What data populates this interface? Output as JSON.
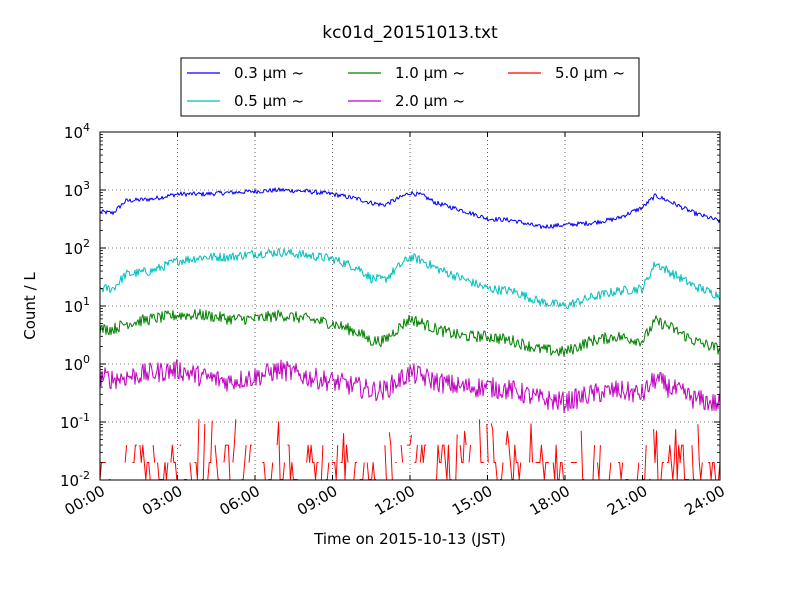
{
  "chart_data": {
    "type": "line",
    "title": "kc01d_20151013.txt",
    "xlabel": "Time on 2015-10-13 (JST)",
    "ylabel": "Count / L",
    "x_ticks": [
      "00:00",
      "03:00",
      "06:00",
      "09:00",
      "12:00",
      "15:00",
      "18:00",
      "21:00",
      "24:00"
    ],
    "xlim": [
      "00:00",
      "24:00"
    ],
    "yscale": "log",
    "ylim": [
      0.01,
      10000
    ],
    "y_ticks": [
      {
        "base": "10",
        "exp": "-2"
      },
      {
        "base": "10",
        "exp": "-1"
      },
      {
        "base": "10",
        "exp": "0"
      },
      {
        "base": "10",
        "exp": "1"
      },
      {
        "base": "10",
        "exp": "2"
      },
      {
        "base": "10",
        "exp": "3"
      },
      {
        "base": "10",
        "exp": "4"
      }
    ],
    "grid": true,
    "legend_position": "top-center",
    "series": [
      {
        "name": "0.3 μm ~",
        "color": "#0000ff",
        "x_hours": [
          0,
          0.5,
          1,
          2,
          3,
          4,
          5,
          6,
          7,
          8,
          9,
          10,
          10.5,
          11,
          11.5,
          12,
          12.5,
          13,
          14,
          15,
          16,
          17,
          18,
          19,
          20,
          21,
          21.5,
          22,
          23,
          24
        ],
        "values": [
          420,
          400,
          650,
          700,
          850,
          850,
          900,
          950,
          1000,
          950,
          850,
          700,
          600,
          550,
          700,
          900,
          800,
          600,
          450,
          320,
          300,
          230,
          250,
          270,
          320,
          500,
          800,
          650,
          400,
          290
        ]
      },
      {
        "name": "0.5 μm ~",
        "color": "#00bfbf",
        "x_hours": [
          0,
          0.5,
          1,
          2,
          3,
          4,
          5,
          6,
          7,
          8,
          9,
          10,
          10.5,
          11,
          11.5,
          12,
          12.5,
          13,
          14,
          15,
          16,
          17,
          18,
          19,
          20,
          21,
          21.5,
          22,
          23,
          24
        ],
        "values": [
          20,
          20,
          35,
          40,
          60,
          70,
          70,
          80,
          85,
          75,
          65,
          45,
          30,
          28,
          45,
          70,
          60,
          45,
          30,
          20,
          18,
          12,
          10,
          14,
          18,
          20,
          55,
          40,
          22,
          15
        ]
      },
      {
        "name": "1.0 μm ~",
        "color": "#008000",
        "x_hours": [
          0,
          0.5,
          1,
          2,
          3,
          4,
          5,
          6,
          7,
          8,
          9,
          10,
          10.5,
          11,
          11.5,
          12,
          12.5,
          13,
          14,
          15,
          16,
          17,
          18,
          19,
          20,
          21,
          21.5,
          22,
          23,
          24
        ],
        "values": [
          4,
          4,
          5,
          6,
          7,
          7,
          6,
          6,
          7,
          6,
          5,
          3.5,
          2.5,
          2.5,
          4,
          6,
          5,
          4,
          3,
          3,
          2.5,
          1.8,
          1.6,
          2.5,
          3,
          2.5,
          5.5,
          4.5,
          2.5,
          1.8
        ]
      },
      {
        "name": "2.0 μm ~",
        "color": "#bf00bf",
        "x_hours": [
          0,
          0.5,
          1,
          2,
          3,
          4,
          5,
          6,
          7,
          8,
          9,
          10,
          10.5,
          11,
          11.5,
          12,
          12.5,
          13,
          14,
          15,
          16,
          17,
          18,
          19,
          20,
          21,
          21.5,
          22,
          23,
          24
        ],
        "values": [
          0.6,
          0.55,
          0.6,
          0.7,
          0.8,
          0.6,
          0.5,
          0.6,
          0.8,
          0.6,
          0.5,
          0.4,
          0.35,
          0.35,
          0.5,
          0.7,
          0.6,
          0.5,
          0.4,
          0.4,
          0.35,
          0.25,
          0.22,
          0.3,
          0.35,
          0.3,
          0.55,
          0.4,
          0.25,
          0.2
        ]
      },
      {
        "name": "5.0 μm ~",
        "color": "#ff0000",
        "x_hours": [
          0,
          24
        ],
        "values": [
          0.02,
          0.02
        ],
        "note_level_range": [
          0.01,
          0.12
        ]
      }
    ]
  }
}
